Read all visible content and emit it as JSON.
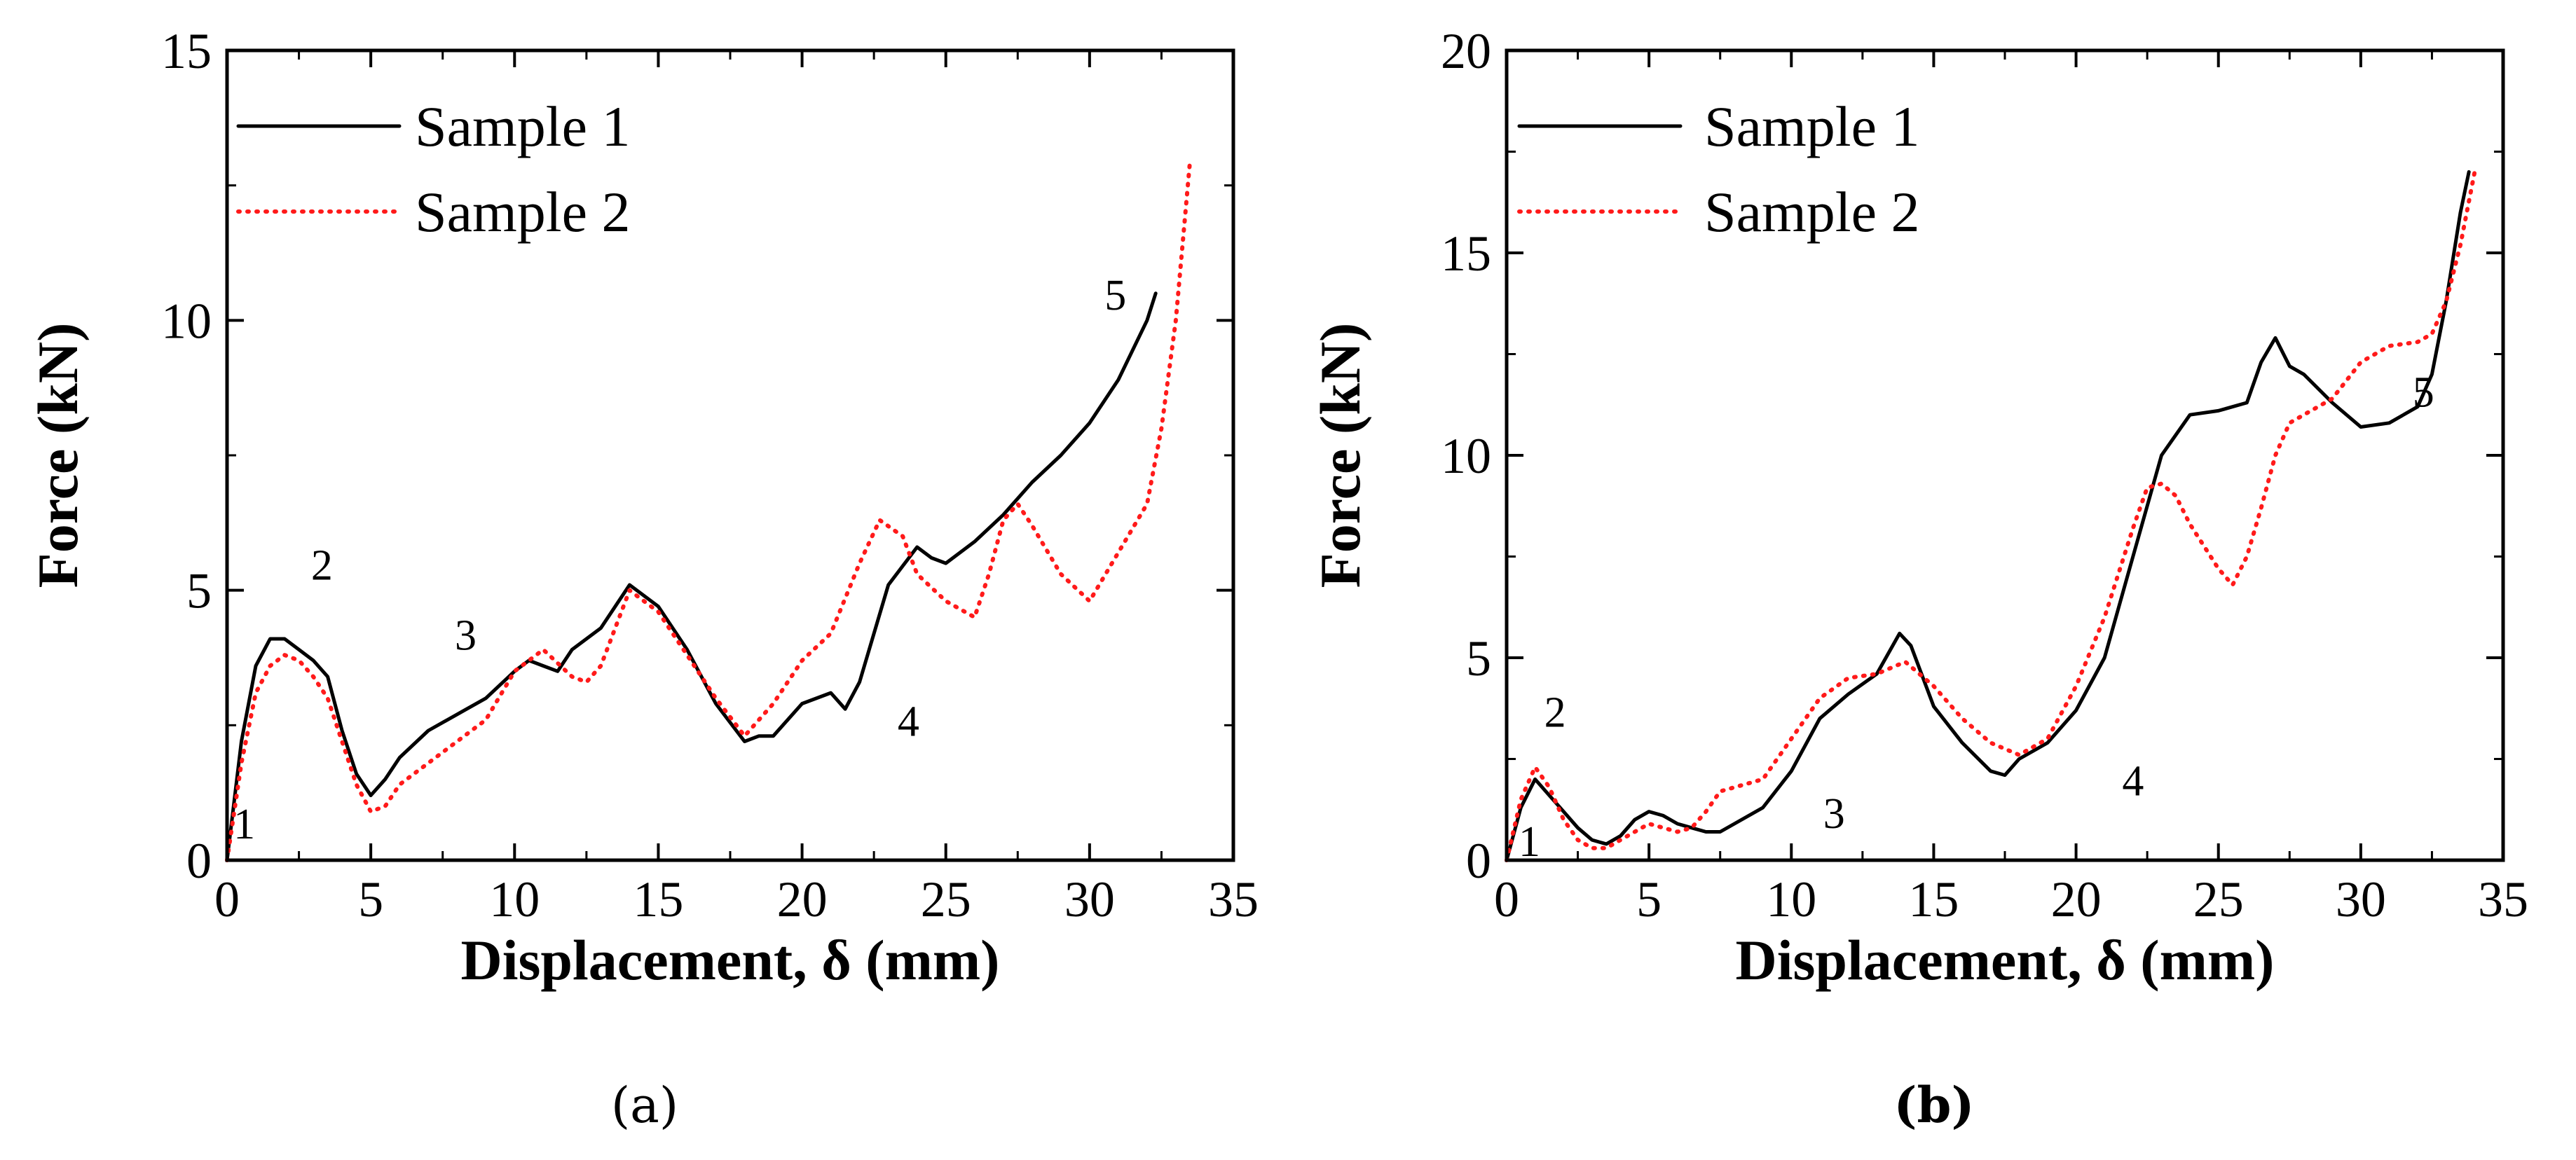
{
  "colors": {
    "sample1": "#000000",
    "sample2": "#ff1a1a",
    "axis": "#000000"
  },
  "chart_data": [
    {
      "type": "line",
      "panel_label": "(a)",
      "xlabel": "Displacement, δ (mm)",
      "ylabel": "Force (kN)",
      "xlim": [
        0,
        35
      ],
      "ylim": [
        0,
        15
      ],
      "xticks": [
        0,
        5,
        10,
        15,
        20,
        25,
        30,
        35
      ],
      "yticks": [
        0,
        5,
        10,
        15
      ],
      "xtick_labels": [
        "0",
        "5",
        "10",
        "15",
        "20",
        "25",
        "30",
        "35"
      ],
      "ytick_labels": [
        "0",
        "5",
        "10",
        "15"
      ],
      "legend_position": "top-left",
      "series": [
        {
          "name": "Sample 1",
          "style": "solid",
          "x": [
            0,
            0.5,
            1,
            1.5,
            2,
            2.5,
            3,
            3.5,
            4,
            4.5,
            5,
            5.5,
            6,
            7,
            8,
            9,
            10,
            10.5,
            11,
            11.5,
            12,
            13,
            14,
            15,
            16,
            17,
            18,
            18.5,
            19,
            20,
            21,
            21.5,
            22,
            23,
            24,
            24.5,
            25,
            26,
            27,
            28,
            29,
            30,
            31,
            32,
            32.3
          ],
          "y": [
            0,
            2.2,
            3.6,
            4.1,
            4.1,
            3.9,
            3.7,
            3.4,
            2.4,
            1.6,
            1.2,
            1.5,
            1.9,
            2.4,
            2.7,
            3.0,
            3.5,
            3.7,
            3.6,
            3.5,
            3.9,
            4.3,
            5.1,
            4.7,
            3.9,
            2.9,
            2.2,
            2.3,
            2.3,
            2.9,
            3.1,
            2.8,
            3.3,
            5.1,
            5.8,
            5.6,
            5.5,
            5.9,
            6.4,
            7.0,
            7.5,
            8.1,
            8.9,
            10.0,
            10.5
          ]
        },
        {
          "name": "Sample 2",
          "style": "dotted",
          "x": [
            0,
            0.5,
            1,
            1.5,
            2,
            2.5,
            3,
            3.5,
            4,
            4.5,
            5,
            5.5,
            6,
            7,
            8,
            9,
            10,
            11,
            12,
            12.5,
            13,
            14,
            15,
            16,
            17,
            18,
            19,
            20,
            21,
            22,
            22.7,
            23.5,
            24,
            25,
            26,
            26.5,
            27,
            27.5,
            28,
            29,
            30,
            31,
            32,
            32.5,
            33,
            33.5
          ],
          "y": [
            0,
            1.8,
            3.1,
            3.6,
            3.8,
            3.7,
            3.4,
            3.0,
            2.2,
            1.4,
            0.9,
            1.0,
            1.4,
            1.8,
            2.2,
            2.6,
            3.5,
            3.9,
            3.4,
            3.3,
            3.6,
            5.0,
            4.6,
            3.8,
            3.0,
            2.3,
            2.9,
            3.7,
            4.2,
            5.5,
            6.3,
            6.0,
            5.3,
            4.8,
            4.5,
            5.3,
            6.3,
            6.6,
            6.2,
            5.3,
            4.8,
            5.7,
            6.6,
            8.0,
            10.0,
            13.0
          ]
        }
      ],
      "annotations": [
        {
          "text": "1",
          "x": 0.6,
          "y": 0.4
        },
        {
          "text": "2",
          "x": 3.3,
          "y": 5.2
        },
        {
          "text": "3",
          "x": 8.3,
          "y": 3.9
        },
        {
          "text": "4",
          "x": 23.7,
          "y": 2.3
        },
        {
          "text": "5",
          "x": 30.9,
          "y": 10.2
        }
      ]
    },
    {
      "type": "line",
      "panel_label": "(b)",
      "xlabel": "Displacement, δ (mm)",
      "ylabel": "Force (kN)",
      "xlim": [
        0,
        35
      ],
      "ylim": [
        0,
        20
      ],
      "xticks": [
        0,
        5,
        10,
        15,
        20,
        25,
        30,
        35
      ],
      "yticks": [
        0,
        5,
        10,
        15,
        20
      ],
      "xtick_labels": [
        "0",
        "5",
        "10",
        "15",
        "20",
        "25",
        "30",
        "35"
      ],
      "ytick_labels": [
        "0",
        "5",
        "10",
        "15",
        "20"
      ],
      "legend_position": "top-left",
      "series": [
        {
          "name": "Sample 1",
          "style": "solid",
          "x": [
            0,
            0.5,
            1,
            1.5,
            2,
            2.5,
            3,
            3.5,
            4,
            4.5,
            5,
            5.5,
            6,
            6.5,
            7,
            7.5,
            8,
            9,
            10,
            11,
            12,
            13,
            13.8,
            14.2,
            15,
            16,
            17,
            17.5,
            18,
            19,
            20,
            21,
            22,
            23,
            24,
            25,
            26,
            26.5,
            27,
            27.5,
            28,
            29,
            30,
            31,
            32,
            32.5,
            33,
            33.5,
            33.8
          ],
          "y": [
            0,
            1.3,
            2.0,
            1.6,
            1.2,
            0.8,
            0.5,
            0.4,
            0.6,
            1.0,
            1.2,
            1.1,
            0.9,
            0.8,
            0.7,
            0.7,
            0.9,
            1.3,
            2.2,
            3.5,
            4.1,
            4.6,
            5.6,
            5.3,
            3.8,
            2.9,
            2.2,
            2.1,
            2.5,
            2.9,
            3.7,
            5.0,
            7.5,
            10.0,
            11.0,
            11.1,
            11.3,
            12.3,
            12.9,
            12.2,
            12.0,
            11.3,
            10.7,
            10.8,
            11.2,
            12.0,
            13.8,
            16.0,
            17.0
          ]
        },
        {
          "name": "Sample 2",
          "style": "dotted",
          "x": [
            0,
            0.5,
            1,
            1.5,
            2,
            2.5,
            3,
            3.5,
            4,
            4.5,
            5,
            5.5,
            6,
            6.5,
            7,
            7.5,
            8,
            9,
            10,
            11,
            12,
            13,
            14,
            15,
            16,
            17,
            18,
            19,
            20,
            21,
            22,
            22.5,
            23,
            23.5,
            24,
            25,
            25.5,
            26,
            26.5,
            27,
            27.5,
            28,
            29,
            30,
            31,
            32,
            32.5,
            33,
            33.5,
            34
          ],
          "y": [
            0,
            1.5,
            2.3,
            1.8,
            1.0,
            0.5,
            0.3,
            0.3,
            0.5,
            0.7,
            0.9,
            0.8,
            0.7,
            0.8,
            1.2,
            1.7,
            1.8,
            2.0,
            3.0,
            4.0,
            4.5,
            4.6,
            4.9,
            4.3,
            3.5,
            2.9,
            2.6,
            3.0,
            4.3,
            6.0,
            8.2,
            9.2,
            9.3,
            9.0,
            8.3,
            7.2,
            6.8,
            7.5,
            8.7,
            10.0,
            10.8,
            11.0,
            11.4,
            12.3,
            12.7,
            12.8,
            13.0,
            13.8,
            15.2,
            17.0
          ]
        }
      ],
      "annotations": [
        {
          "text": "1",
          "x": 0.8,
          "y": 0.1
        },
        {
          "text": "2",
          "x": 1.7,
          "y": 3.3
        },
        {
          "text": "3",
          "x": 11.5,
          "y": 0.8
        },
        {
          "text": "4",
          "x": 22.0,
          "y": 1.6
        },
        {
          "text": "5",
          "x": 32.2,
          "y": 11.2
        }
      ]
    }
  ]
}
